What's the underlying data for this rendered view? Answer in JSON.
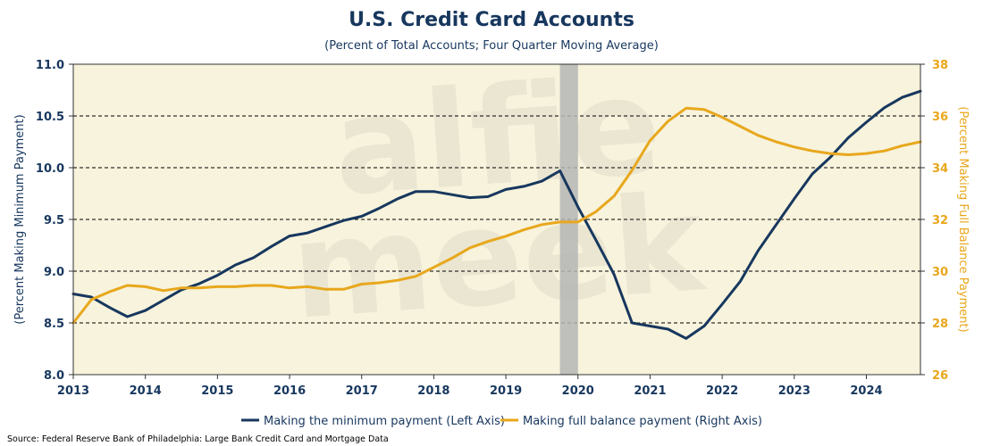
{
  "chart_data": {
    "type": "line",
    "title": "U.S. Credit Card Accounts",
    "subtitle": "(Percent of Total Accounts; Four Quarter Moving Average)",
    "ylabel_left": "(Percent Making Minimum Payment)",
    "ylabel_right": "(Percent Making Full Balance Payment)",
    "ylim_left": [
      8.0,
      11.0
    ],
    "ylim_right": [
      26,
      38
    ],
    "xlim": [
      2013.0,
      2024.75
    ],
    "yticks_left": [
      "8.0",
      "8.5",
      "9.0",
      "9.5",
      "10.0",
      "10.5",
      "11.0"
    ],
    "yticks_right": [
      "26",
      "28",
      "30",
      "32",
      "34",
      "36",
      "38"
    ],
    "xticks": [
      "2013",
      "2014",
      "2015",
      "2016",
      "2017",
      "2018",
      "2019",
      "2020",
      "2021",
      "2022",
      "2023",
      "2024"
    ],
    "gridlines_left": [
      8.5,
      9.0,
      9.5,
      10.0,
      10.5
    ],
    "shaded_period": {
      "x_start": 2019.75,
      "x_end": 2020.0
    },
    "watermark_text": [
      "alfie",
      "meek"
    ],
    "source": "Source: Federal Reserve Bank of Philadelphia: Large Bank Credit Card and Mortgage Data",
    "colors": {
      "minimum": "#17375e",
      "full": "#e8a71c",
      "plot_bg": "#f7f3dc",
      "shade": "#b5b5b5",
      "left_axis_text": "#17375e",
      "right_axis_text": "#e8a71c"
    },
    "series": [
      {
        "name": "Making the minimum payment (Left Axis)",
        "axis": "left",
        "x": [
          2013.0,
          2013.25,
          2013.5,
          2013.75,
          2014.0,
          2014.25,
          2014.5,
          2014.75,
          2015.0,
          2015.25,
          2015.5,
          2015.75,
          2016.0,
          2016.25,
          2016.5,
          2016.75,
          2017.0,
          2017.25,
          2017.5,
          2017.75,
          2018.0,
          2018.25,
          2018.5,
          2018.75,
          2019.0,
          2019.25,
          2019.5,
          2019.75,
          2020.0,
          2020.25,
          2020.5,
          2020.75,
          2021.0,
          2021.25,
          2021.5,
          2021.75,
          2022.0,
          2022.25,
          2022.5,
          2022.75,
          2023.0,
          2023.25,
          2023.5,
          2023.75,
          2024.0,
          2024.25,
          2024.5,
          2024.75
        ],
        "values": [
          8.78,
          8.75,
          8.65,
          8.56,
          8.62,
          8.72,
          8.82,
          8.88,
          8.96,
          9.06,
          9.13,
          9.24,
          9.34,
          9.37,
          9.43,
          9.49,
          9.53,
          9.61,
          9.7,
          9.77,
          9.77,
          9.74,
          9.71,
          9.72,
          9.79,
          9.82,
          9.87,
          9.97,
          9.62,
          9.3,
          8.97,
          8.5,
          8.47,
          8.44,
          8.35,
          8.47,
          8.68,
          8.9,
          9.2,
          9.45,
          9.7,
          9.94,
          10.1,
          10.29,
          10.44,
          10.58,
          10.68,
          10.74
        ]
      },
      {
        "name": "Making full balance payment (Right Axis)",
        "axis": "right",
        "x": [
          2013.0,
          2013.25,
          2013.5,
          2013.75,
          2014.0,
          2014.25,
          2014.5,
          2014.75,
          2015.0,
          2015.25,
          2015.5,
          2015.75,
          2016.0,
          2016.25,
          2016.5,
          2016.75,
          2017.0,
          2017.25,
          2017.5,
          2017.75,
          2018.0,
          2018.25,
          2018.5,
          2018.75,
          2019.0,
          2019.25,
          2019.5,
          2019.75,
          2020.0,
          2020.25,
          2020.5,
          2020.75,
          2021.0,
          2021.25,
          2021.5,
          2021.75,
          2022.0,
          2022.25,
          2022.5,
          2022.75,
          2023.0,
          2023.25,
          2023.5,
          2023.75,
          2024.0,
          2024.25,
          2024.5,
          2024.75
        ],
        "values": [
          28.0,
          28.9,
          29.2,
          29.45,
          29.4,
          29.25,
          29.35,
          29.35,
          29.4,
          29.4,
          29.45,
          29.45,
          29.35,
          29.4,
          29.3,
          29.3,
          29.5,
          29.55,
          29.65,
          29.8,
          30.15,
          30.5,
          30.9,
          31.15,
          31.35,
          31.6,
          31.8,
          31.9,
          31.9,
          32.3,
          32.9,
          33.9,
          35.05,
          35.8,
          36.3,
          36.25,
          35.95,
          35.6,
          35.25,
          35.0,
          34.8,
          34.65,
          34.55,
          34.5,
          34.55,
          34.65,
          34.85,
          35.0
        ]
      }
    ]
  }
}
